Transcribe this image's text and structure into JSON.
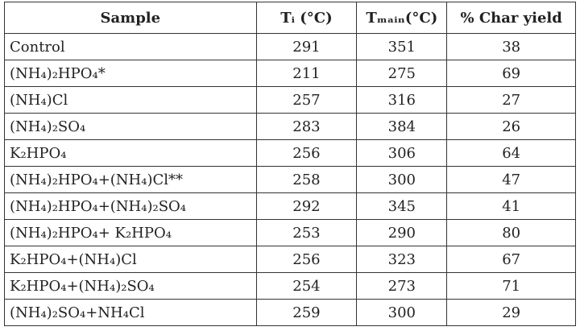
{
  "table": {
    "header": [
      "Sample",
      "Tᵢ (°C)",
      "Tₘₐᵢₙ(°C)",
      "% Char yield"
    ],
    "rows": [
      [
        "Control",
        291,
        351,
        38
      ],
      [
        "(NH₄)₂HPO₄*",
        211,
        275,
        69
      ],
      [
        "(NH₄)Cl",
        257,
        316,
        27
      ],
      [
        "(NH₄)₂SO₄",
        283,
        384,
        26
      ],
      [
        "K₂HPO₄",
        256,
        306,
        64
      ],
      [
        "(NH₄)₂HPO₄+(NH₄)Cl**",
        258,
        300,
        47
      ],
      [
        "(NH₄)₂HPO₄+(NH₄)₂SO₄",
        292,
        345,
        41
      ],
      [
        "(NH₄)₂HPO₄+ K₂HPO₄",
        253,
        290,
        80
      ],
      [
        "K₂HPO₄+(NH₄)Cl",
        256,
        323,
        67
      ],
      [
        "K₂HPO₄+(NH₄)₂SO₄",
        254,
        273,
        71
      ],
      [
        "(NH₄)₂SO₄+NH₄Cl",
        259,
        300,
        29
      ]
    ]
  }
}
